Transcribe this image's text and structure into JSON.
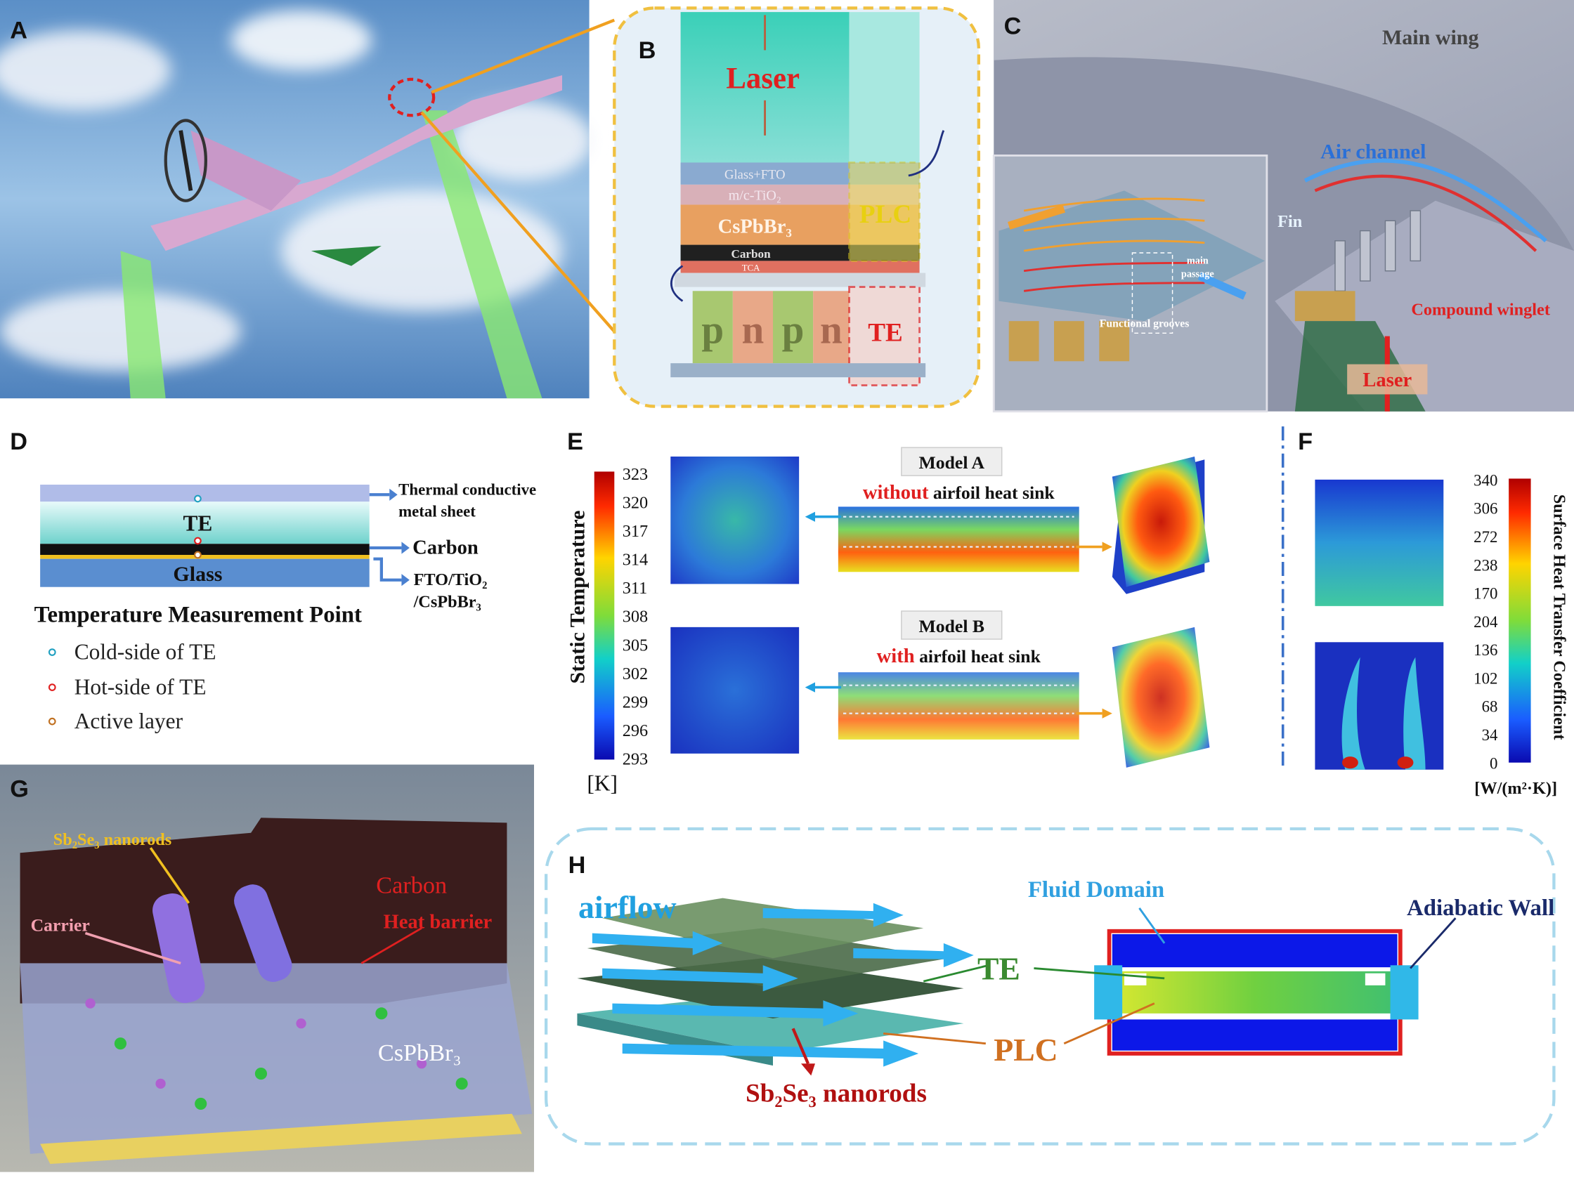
{
  "panel_a": {
    "label": "A"
  },
  "panel_b": {
    "label": "B",
    "laser": "Laser",
    "layers": [
      "Glass+FTO",
      "m/c-TiO₂",
      "CsPbBr₃",
      "Carbon",
      "TCA"
    ],
    "legs": [
      "p",
      "n",
      "p",
      "n"
    ],
    "plc": "PLC",
    "te": "TE"
  },
  "panel_c": {
    "label": "C",
    "main_wing": "Main wing",
    "air_channel": "Air channel",
    "fin": "Fin",
    "main_passage": [
      "main",
      "passage"
    ],
    "functional_grooves": "Functional grooves",
    "compound_winglet": "Compound winglet",
    "laser": "Laser"
  },
  "panel_d": {
    "label": "D",
    "te": "TE",
    "glass": "Glass",
    "metal_sheet": [
      "Thermal conductive",
      "metal sheet"
    ],
    "carbon": "Carbon",
    "fto": [
      "FTO/TiO₂",
      "/CsPbBr₃"
    ],
    "heading": "Temperature Measurement Point",
    "points": [
      "Cold-side of TE",
      "Hot-side of TE",
      "Active layer"
    ]
  },
  "panel_e": {
    "label": "E",
    "colorbar_title": "Static Temperature",
    "unit": "[K]",
    "ticks": [
      "323",
      "320",
      "317",
      "314",
      "311",
      "308",
      "305",
      "302",
      "299",
      "296",
      "293"
    ],
    "model_a": {
      "name": "Model A",
      "emph": "without",
      "rest": "airfoil heat sink"
    },
    "model_b": {
      "name": "Model B",
      "emph": "with",
      "rest": "airfoil heat sink"
    }
  },
  "panel_f": {
    "label": "F",
    "colorbar_title": "Surface Heat Transfer Coefficient",
    "unit": "[W/(m²·K)]",
    "ticks": [
      "340",
      "306",
      "272",
      "238",
      "170",
      "204",
      "136",
      "102",
      "68",
      "34",
      "0"
    ]
  },
  "panel_g": {
    "label": "G",
    "nanorods": "Sb₂Se₃ nanorods",
    "carrier": "Carrier",
    "carbon": "Carbon",
    "heat_barrier": "Heat barrier",
    "cspbbr3": "CsPbBr₃"
  },
  "panel_h": {
    "label": "H",
    "airflow": "airflow",
    "fluid_domain": "Fluid Domain",
    "adiabatic_wall": "Adiabatic Wall",
    "te": "TE",
    "plc": "PLC",
    "nanorods": "Sb₂Se₃ nanorods"
  }
}
